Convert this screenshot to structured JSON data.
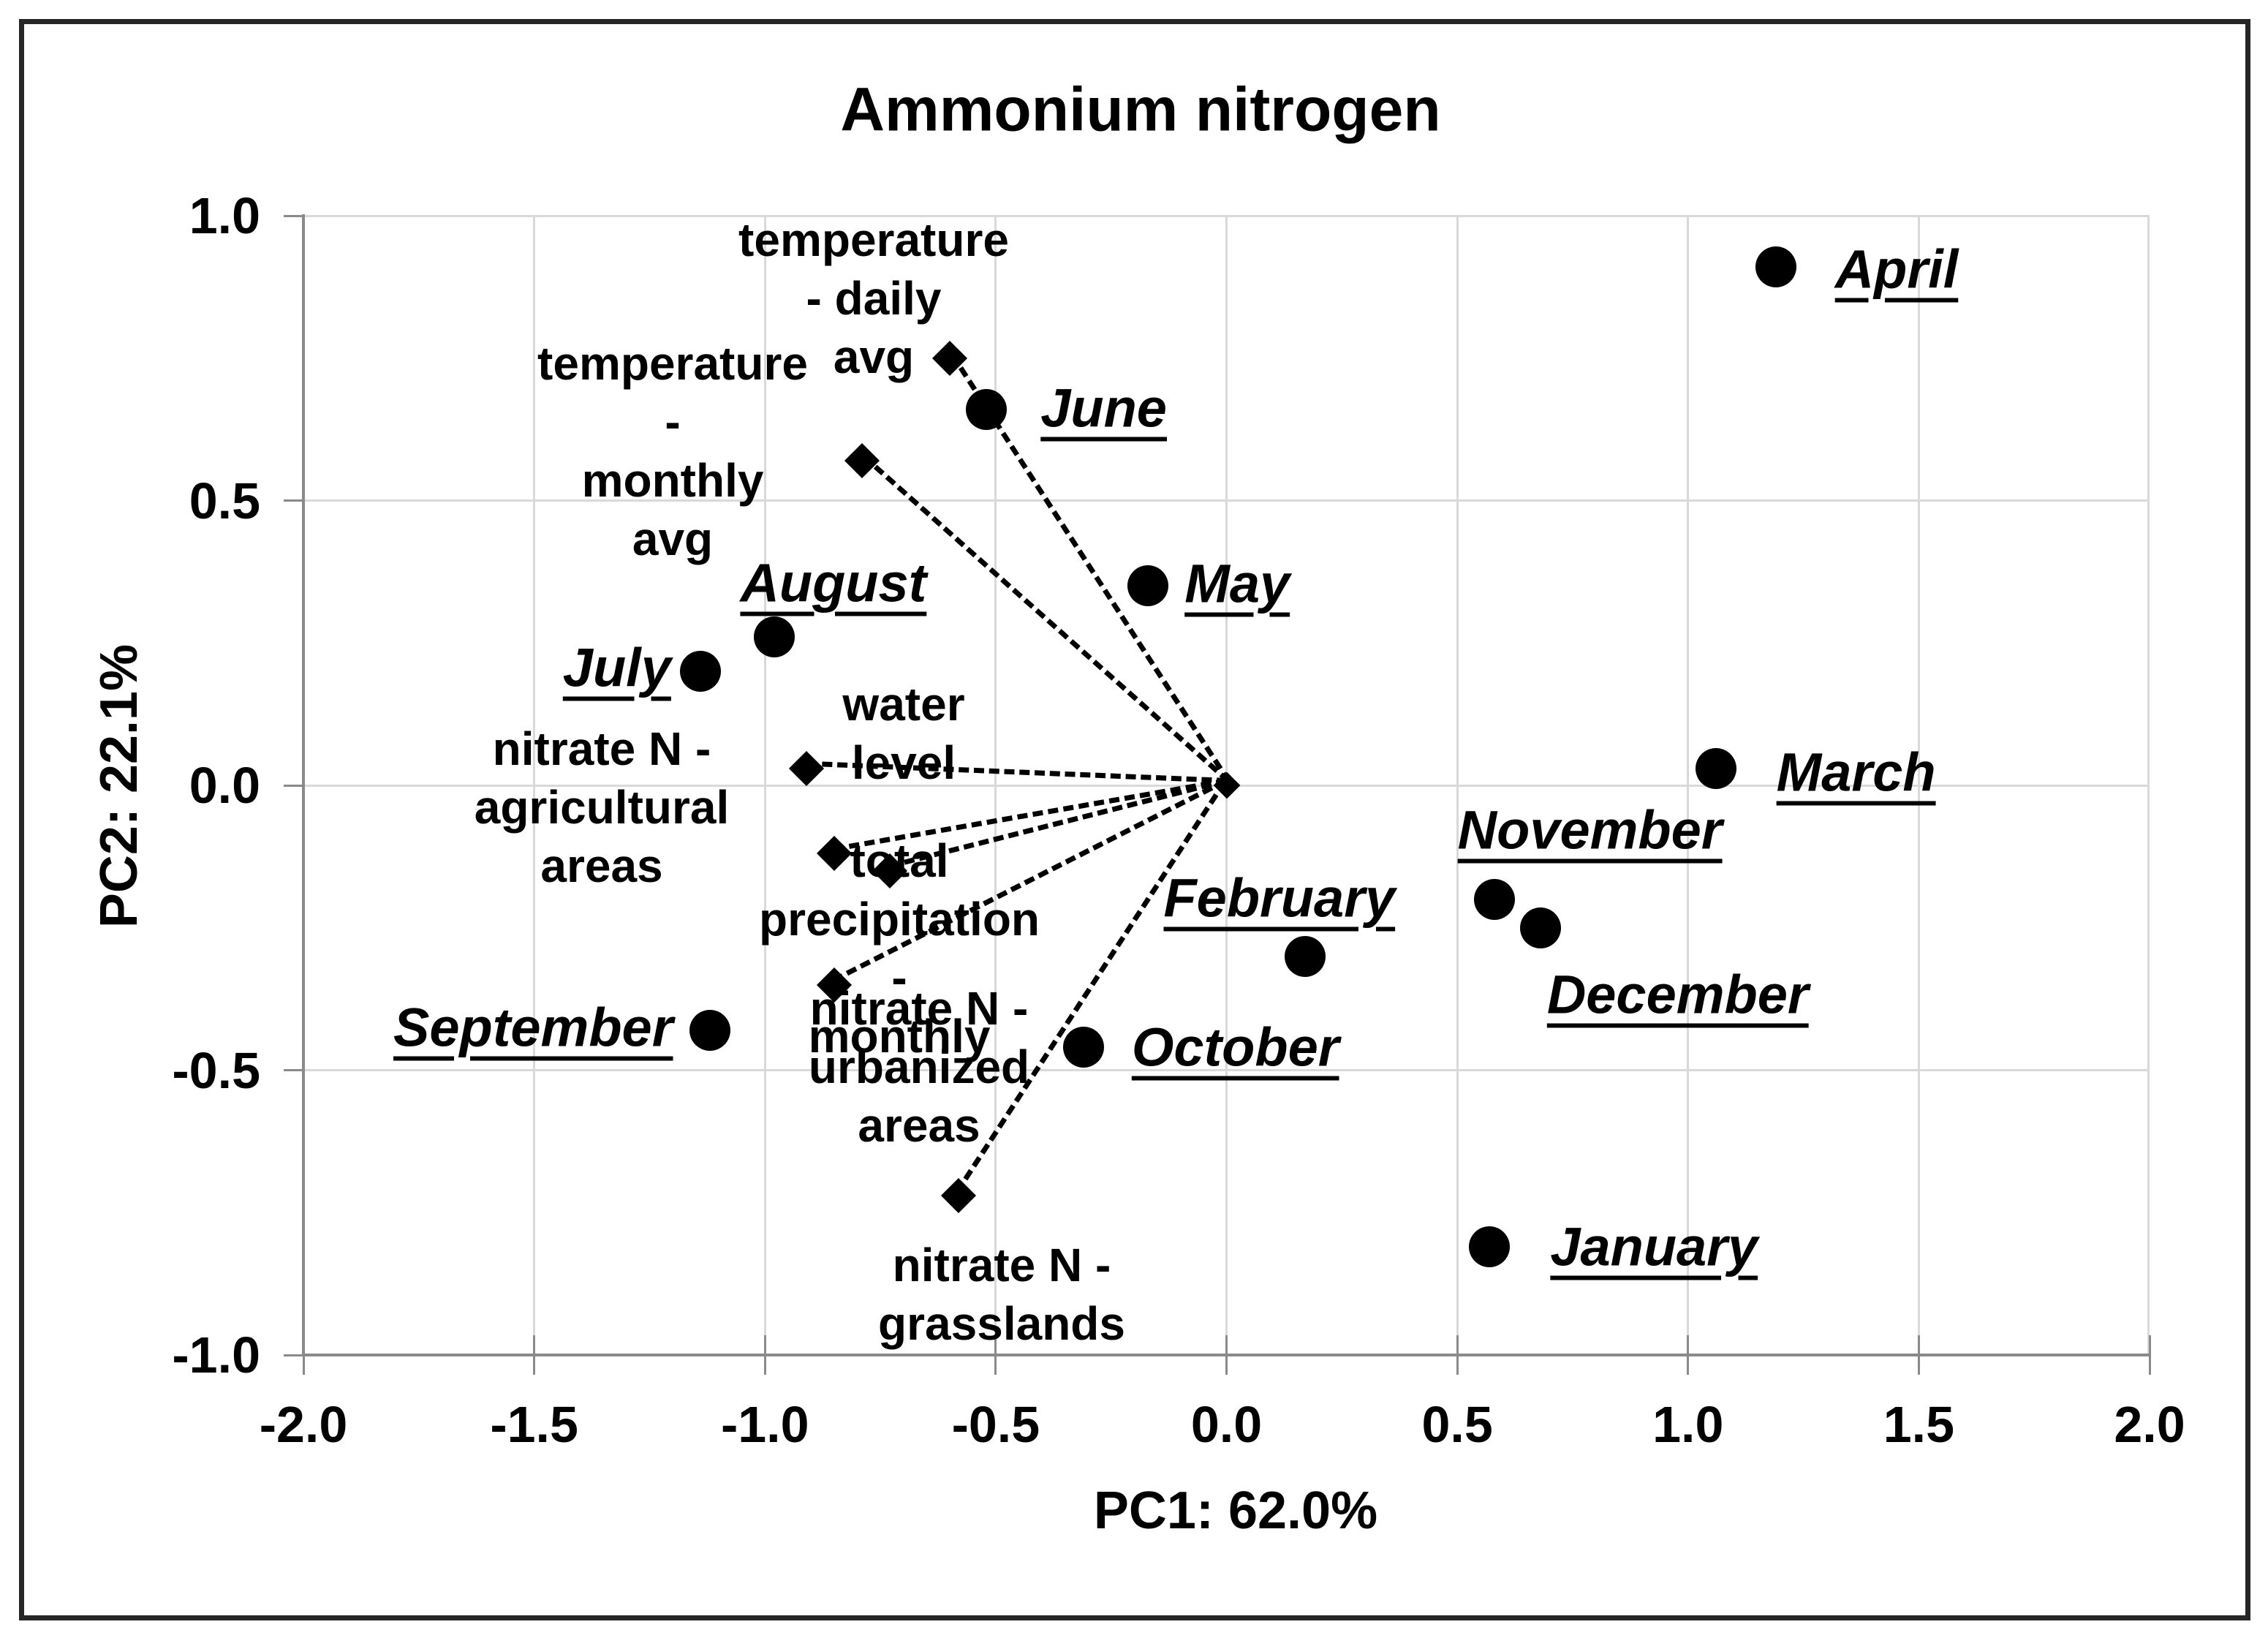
{
  "chart_data": {
    "type": "scatter",
    "title": "Ammonium nitrogen",
    "xlabel": "PC1: 62.0%",
    "ylabel": "PC2: 22.1%",
    "xlim": [
      -2.0,
      2.0
    ],
    "ylim": [
      -1.0,
      1.0
    ],
    "x_ticks": [
      "-2.0",
      "-1.5",
      "-1.0",
      "-0.5",
      "0.0",
      "0.5",
      "1.0",
      "1.5",
      "2.0"
    ],
    "y_ticks": [
      "1.0",
      "0.5",
      "0.0",
      "-0.5",
      "-1.0"
    ],
    "grid": true,
    "legend": "none",
    "colors": {
      "marker": "#000000",
      "grid": "#d9d9d9",
      "axis": "#8a8a8a",
      "frame": "#262626",
      "text": "#000000"
    },
    "series": [
      {
        "name": "months",
        "marker": "circle",
        "points": [
          {
            "label": "January",
            "x": 0.57,
            "y": -0.81,
            "label_side": "right",
            "dx": 83,
            "dy": 0
          },
          {
            "label": "February",
            "x": 0.17,
            "y": -0.3,
            "label_side": "center",
            "dx": -35,
            "dy": -80
          },
          {
            "label": "March",
            "x": 1.06,
            "y": 0.03,
            "label_side": "right",
            "dx": 83,
            "dy": 5
          },
          {
            "label": "April",
            "x": 1.19,
            "y": 0.91,
            "label_side": "right",
            "dx": 81,
            "dy": 3
          },
          {
            "label": "May",
            "x": -0.17,
            "y": 0.35,
            "label_side": "right",
            "dx": 50,
            "dy": -3
          },
          {
            "label": "June",
            "x": -0.52,
            "y": 0.66,
            "label_side": "right",
            "dx": 74,
            "dy": -2
          },
          {
            "label": "July",
            "x": -1.14,
            "y": 0.2,
            "label_side": "left",
            "dx": -40,
            "dy": -5
          },
          {
            "label": "August",
            "x": -0.98,
            "y": 0.26,
            "label_side": "center",
            "dx": 81,
            "dy": -74
          },
          {
            "label": "September",
            "x": -1.12,
            "y": -0.43,
            "label_side": "left",
            "dx": -50,
            "dy": -4
          },
          {
            "label": "October",
            "x": -0.31,
            "y": -0.46,
            "label_side": "right",
            "dx": 66,
            "dy": 0
          },
          {
            "label": "November",
            "x": 0.58,
            "y": -0.2,
            "label_side": "center",
            "dx": 131,
            "dy": -95
          },
          {
            "label": "December",
            "x": 0.68,
            "y": -0.25,
            "label_side": "center",
            "dx": 188,
            "dy": 91
          }
        ]
      },
      {
        "name": "variables",
        "marker": "diamond",
        "line_style": "dashed-from-origin",
        "points": [
          {
            "label": [
              "temperature - daily",
              "avg"
            ],
            "x": -0.6,
            "y": 0.75,
            "lcx": 1195,
            "lcy": 408
          },
          {
            "label": [
              "temperature -",
              "monthly avg"
            ],
            "x": -0.79,
            "y": 0.57,
            "lcx": 920,
            "lcy": 617
          },
          {
            "label": [
              "water level"
            ],
            "x": -0.91,
            "y": 0.03,
            "lcx": 1236,
            "lcy": 1003
          },
          {
            "label": [
              "nitrate N -",
              "agricultural areas"
            ],
            "x": -0.85,
            "y": -0.12,
            "lcx": 823,
            "lcy": 1104
          },
          {
            "label": [
              "total precipitation -",
              "monthly"
            ],
            "x": -0.73,
            "y": -0.15,
            "lcx": 1230,
            "lcy": 1297
          },
          {
            "label": [
              "nitrate N -",
              "urbanized areas"
            ],
            "x": -0.85,
            "y": -0.35,
            "lcx": 1257,
            "lcy": 1459
          },
          {
            "label": [
              "nitrate N  -",
              "grasslands"
            ],
            "x": -0.58,
            "y": -0.72,
            "lcx": 1370,
            "lcy": 1770
          }
        ]
      }
    ],
    "origin_marker": {
      "x": 0.0,
      "y": 0.0
    }
  }
}
